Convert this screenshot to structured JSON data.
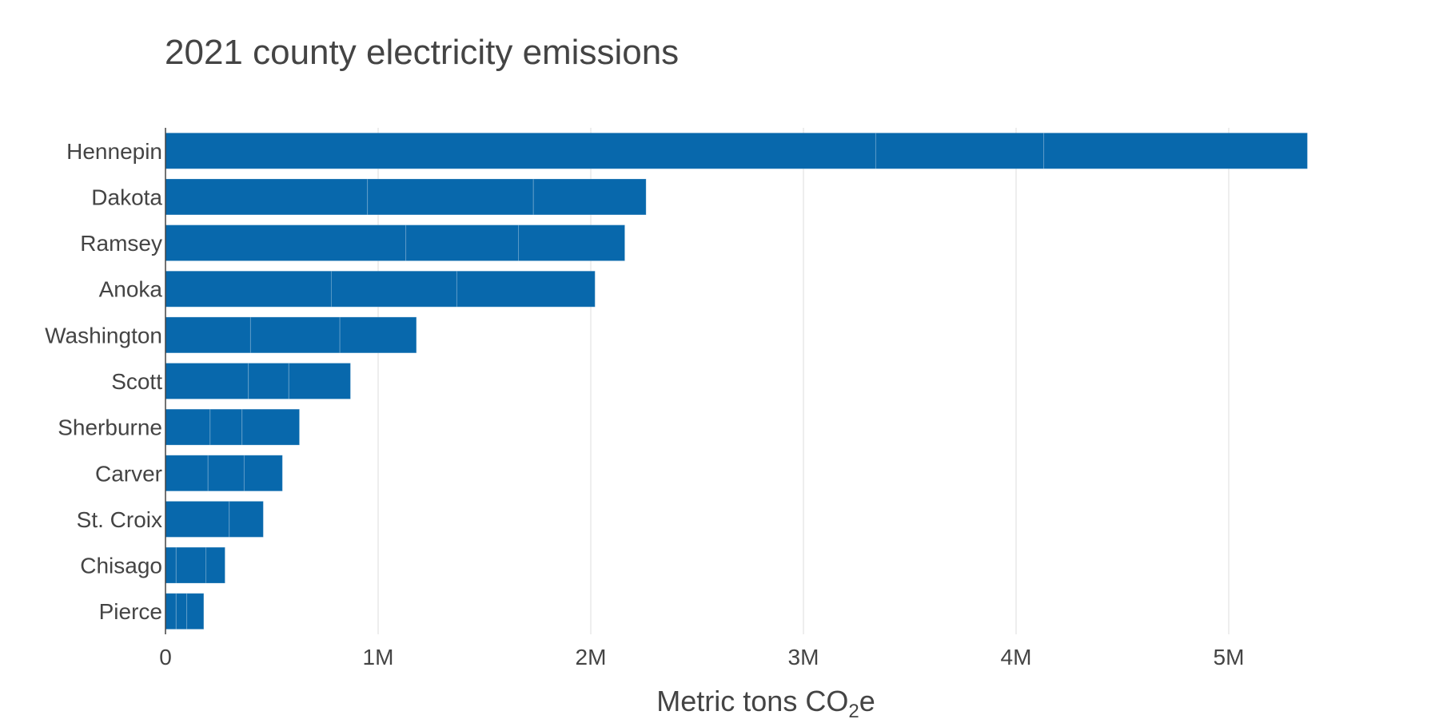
{
  "chart_data": {
    "type": "bar",
    "orientation": "horizontal",
    "stacked": true,
    "title": "2021 county electricity emissions",
    "xlabel": "Metric tons CO",
    "xlabel_subscript": "2",
    "xlabel_suffix": "e",
    "ylabel": "",
    "xlim": [
      0,
      5800000
    ],
    "x_ticks": [
      0,
      1000000,
      2000000,
      3000000,
      4000000,
      5000000
    ],
    "x_tick_labels": [
      "0",
      "1M",
      "2M",
      "3M",
      "4M",
      "5M"
    ],
    "grid": true,
    "legend": "none",
    "bar_color": "#0868ac",
    "categories": [
      "Hennepin",
      "Dakota",
      "Ramsey",
      "Anoka",
      "Washington",
      "Scott",
      "Sherburne",
      "Carver",
      "St. Croix",
      "Chisago",
      "Pierce"
    ],
    "series": [
      {
        "values": [
          3340000,
          950000,
          1130000,
          780000,
          400000,
          390000,
          210000,
          200000,
          300000,
          50000,
          50000
        ]
      },
      {
        "values": [
          790000,
          780000,
          530000,
          590000,
          420000,
          190000,
          150000,
          170000,
          0,
          140000,
          50000
        ]
      },
      {
        "values": [
          1240000,
          530000,
          500000,
          650000,
          360000,
          290000,
          270000,
          180000,
          160000,
          90000,
          80000
        ]
      }
    ]
  }
}
